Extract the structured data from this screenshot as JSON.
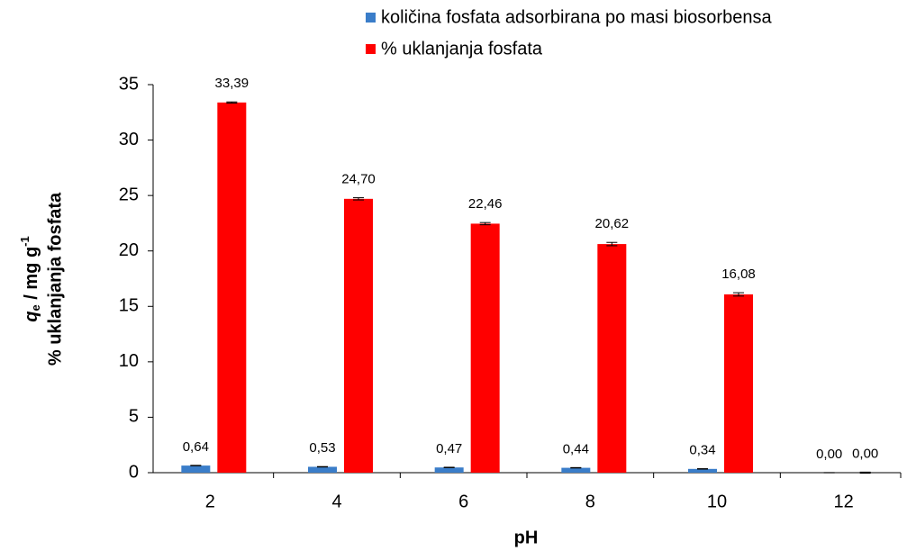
{
  "chart_data": {
    "type": "bar",
    "x_label": "pH",
    "y_label": [
      [
        "q",
        "e",
        " / mg g",
        "-1"
      ],
      "% uklanjanja fosfata"
    ],
    "categories": [
      "2",
      "4",
      "6",
      "8",
      "10",
      "12"
    ],
    "series": [
      {
        "name": "količina fosfata adsorbirana po masi biosorbensa",
        "color": "#3a7dc9",
        "values": [
          0.64,
          0.53,
          0.47,
          0.44,
          0.34,
          0.0
        ],
        "value_labels": [
          "0,64",
          "0,53",
          "0,47",
          "0,44",
          "0,34",
          "0,00"
        ],
        "errors": [
          0.02,
          0.02,
          0.02,
          0.02,
          0.02,
          0.01
        ]
      },
      {
        "name": "% uklanjanja fosfata",
        "color": "#ff0000",
        "values": [
          33.39,
          24.7,
          22.46,
          20.62,
          16.08,
          0.0
        ],
        "value_labels": [
          "33,39",
          "24,70",
          "22,46",
          "20,62",
          "16,08",
          "0,00"
        ],
        "errors": [
          0.05,
          0.1,
          0.1,
          0.15,
          0.15,
          0.05
        ]
      }
    ],
    "ylim": [
      0,
      35
    ],
    "yticks": [
      0,
      5,
      10,
      15,
      20,
      25,
      30,
      35
    ],
    "grid": false,
    "legend": "top"
  }
}
